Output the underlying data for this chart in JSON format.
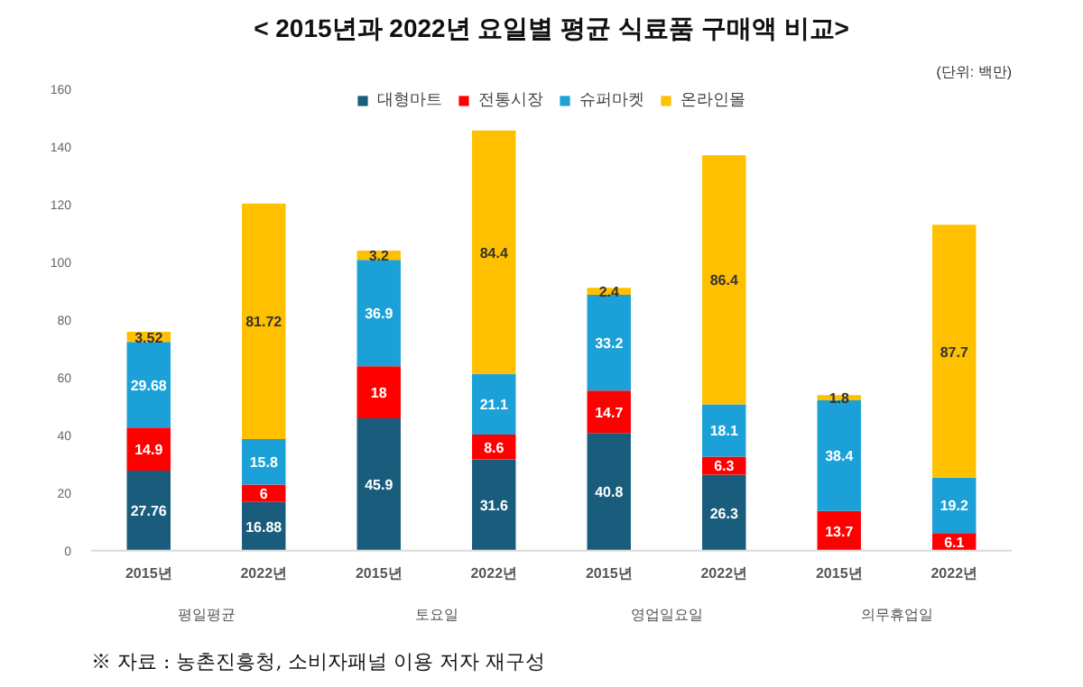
{
  "chart_data": {
    "type": "bar",
    "stacked": true,
    "title": "< 2015년과 2022년 요일별 평균 식료품 구매액 비교>",
    "subtitle": "(단위: 백만)",
    "categories": [
      "2015년",
      "2022년",
      "2015년",
      "2022년",
      "2015년",
      "2022년",
      "2015년",
      "2022년"
    ],
    "series": [
      {
        "name": "대형마트",
        "color": "#1a5c7c",
        "values": [
          27.76,
          16.88,
          45.9,
          31.6,
          40.8,
          26.3,
          null,
          null
        ]
      },
      {
        "name": "전통시장",
        "color": "#ff0000",
        "values": [
          14.9,
          6,
          18,
          8.6,
          14.7,
          6.3,
          13.7,
          6.1
        ]
      },
      {
        "name": "슈퍼마켓",
        "color": "#1ba1d8",
        "values": [
          29.68,
          15.8,
          36.9,
          21.1,
          33.2,
          18.1,
          38.4,
          19.2
        ]
      },
      {
        "name": "온라인몰",
        "color": "#ffc000",
        "values": [
          3.52,
          81.72,
          3.2,
          84.4,
          2.4,
          86.4,
          1.8,
          87.7
        ]
      }
    ],
    "ylim": [
      0,
      160
    ],
    "yticks": [
      0,
      20,
      40,
      60,
      80,
      100,
      120,
      140,
      160
    ],
    "data_labels": true,
    "grid": false,
    "legend": "top",
    "annotations": [
      "평일평균",
      "토요일",
      "영업일요일",
      "의무휴업일",
      "※ 자료 : 농촌진흥청, 소비자패널 이용 저자 재구성"
    ]
  }
}
